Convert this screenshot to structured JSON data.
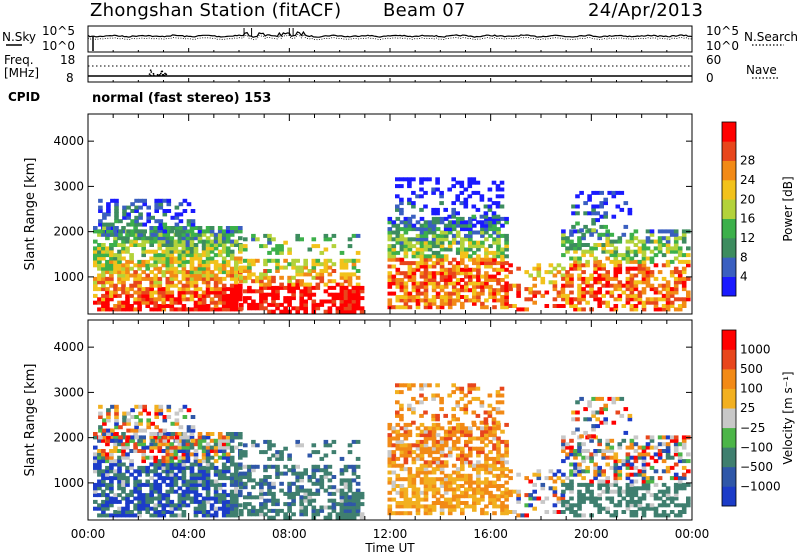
{
  "header": {
    "title": "Zhongshan Station (fitACF)",
    "beam": "Beam 07",
    "date": "24/Apr/2013"
  },
  "noise_panel": {
    "left_label": "N.Sky",
    "right_label": "N.Search",
    "ticks_left": [
      "10^5",
      "10^0"
    ],
    "ticks_right": [
      "10^5",
      "10^0"
    ]
  },
  "freq_panel": {
    "left_label_1": "Freq.",
    "left_label_2": "[MHz]",
    "right_label": "Nave",
    "ticks_left": [
      "18",
      "8"
    ],
    "ticks_right": [
      "60",
      "0"
    ]
  },
  "cpid": {
    "label": "CPID",
    "text": "normal (fast stereo) 153"
  },
  "chart_data": [
    {
      "type": "heatmap",
      "name": "power",
      "ylabel": "Slant Range [km]",
      "yticks": [
        "1000",
        "2000",
        "3000",
        "4000"
      ],
      "ylim": [
        180,
        4600
      ],
      "xlim": [
        0,
        24
      ],
      "colorbar_label": "Power [dB]",
      "colorbar_ticks": [
        "4",
        "8",
        "12",
        "16",
        "20",
        "24",
        "28"
      ],
      "colors": [
        "#1a1aff",
        "#3a5fc0",
        "#3d8c5f",
        "#3cb04a",
        "#b3d23a",
        "#f2c21b",
        "#f28a16",
        "#e8461c",
        "#ff0000"
      ]
    },
    {
      "type": "heatmap",
      "name": "velocity",
      "ylabel": "Slant Range [km]",
      "yticks": [
        "1000",
        "2000",
        "3000",
        "4000"
      ],
      "ylim": [
        180,
        4600
      ],
      "xlim": [
        0,
        24
      ],
      "xticks": [
        "00:00",
        "04:00",
        "08:00",
        "12:00",
        "16:00",
        "20:00",
        "00:00"
      ],
      "xlabel": "Time UT",
      "colorbar_label": "Velocity [m s⁻¹]",
      "colorbar_ticks": [
        "1000",
        "500",
        "100",
        "25",
        "−25",
        "−100",
        "−500",
        "−1000"
      ],
      "colors": [
        "#1c3cc8",
        "#2f57a8",
        "#3f7f6f",
        "#4cb548",
        "#c8c8c8",
        "#f2b020",
        "#f28a16",
        "#e8461c",
        "#ff0000"
      ]
    }
  ]
}
